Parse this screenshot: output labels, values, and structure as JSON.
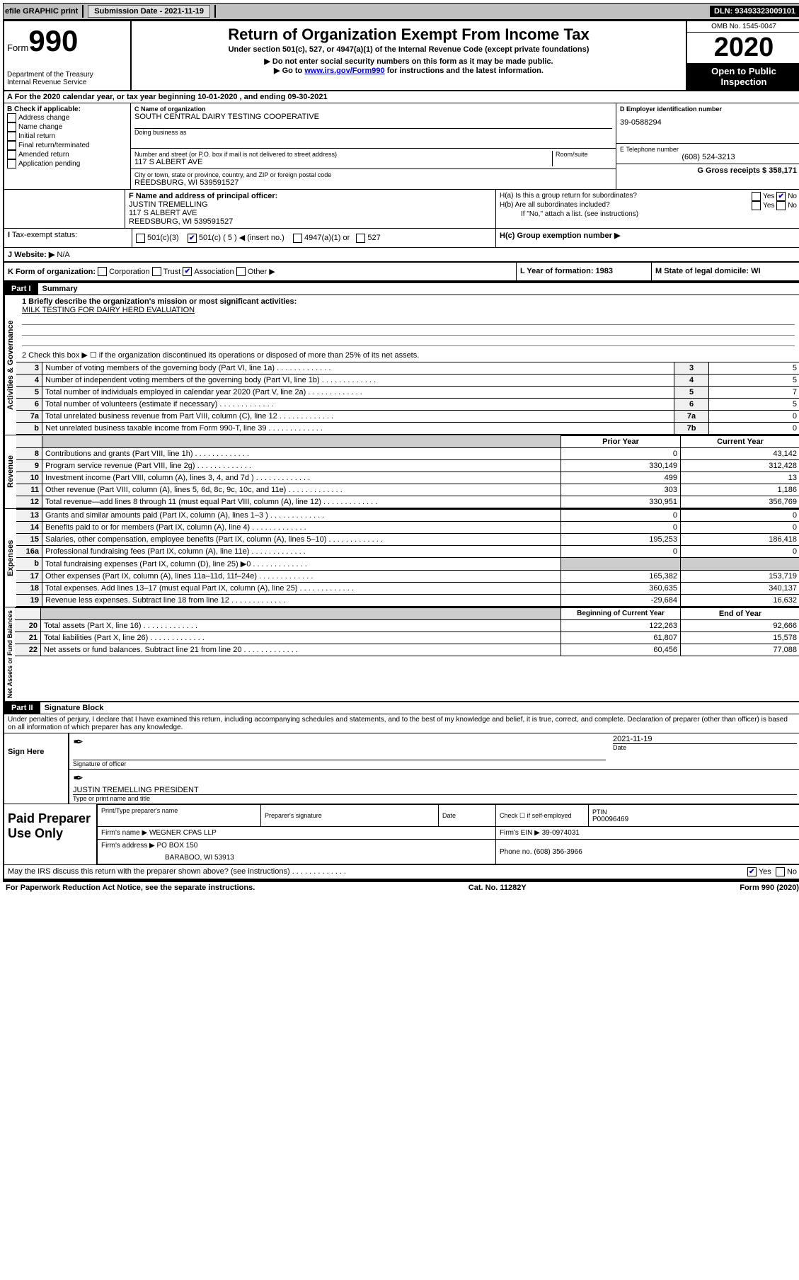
{
  "topbar": {
    "efile_label": "efile GRAPHIC print",
    "submission_label": "Submission Date - 2021-11-19",
    "dln": "DLN: 93493323009101"
  },
  "header": {
    "form_label": "Form",
    "form_number": "990",
    "dept": "Department of the Treasury",
    "irs": "Internal Revenue Service",
    "title": "Return of Organization Exempt From Income Tax",
    "subtitle": "Under section 501(c), 527, or 4947(a)(1) of the Internal Revenue Code (except private foundations)",
    "note1": "▶ Do not enter social security numbers on this form as it may be made public.",
    "note2_a": "▶ Go to ",
    "note2_link": "www.irs.gov/Form990",
    "note2_b": " for instructions and the latest information.",
    "omb": "OMB No. 1545-0047",
    "year": "2020",
    "inspect1": "Open to Public",
    "inspect2": "Inspection"
  },
  "section_a": "A For the 2020 calendar year, or tax year beginning 10-01-2020    , and ending 09-30-2021",
  "col_b": {
    "header": "B Check if applicable:",
    "items": [
      "Address change",
      "Name change",
      "Initial return",
      "Final return/terminated",
      "Amended return",
      "Application pending"
    ]
  },
  "col_c": {
    "name_lbl": "C Name of organization",
    "name": "SOUTH CENTRAL DAIRY TESTING COOPERATIVE",
    "dba_lbl": "Doing business as",
    "street_lbl": "Number and street (or P.O. box if mail is not delivered to street address)",
    "room_lbl": "Room/suite",
    "street": "117 S ALBERT AVE",
    "city_lbl": "City or town, state or province, country, and ZIP or foreign postal code",
    "city": "REEDSBURG, WI  539591527"
  },
  "col_d": {
    "ein_lbl": "D Employer identification number",
    "ein": "39-0588294",
    "tel_lbl": "E Telephone number",
    "tel": "(608) 524-3213",
    "gross_lbl": "G Gross receipts $ 358,171"
  },
  "officer": {
    "lbl": "F  Name and address of principal officer:",
    "name": "JUSTIN TREMELLING",
    "addr1": "117 S ALBERT AVE",
    "addr2": "REEDSBURG, WI  539591527"
  },
  "h_section": {
    "ha": "H(a)  Is this a group return for subordinates?",
    "hb": "H(b)  Are all subordinates included?",
    "hb_note": "If \"No,\" attach a list. (see instructions)",
    "hc": "H(c)  Group exemption number ▶",
    "yes": "Yes",
    "no": "No"
  },
  "tax_status": {
    "lbl": "Tax-exempt status:",
    "c3": "501(c)(3)",
    "c5": "501(c) ( 5 ) ◀ (insert no.)",
    "a1": "4947(a)(1) or",
    "527": "527"
  },
  "website": {
    "lbl": "J  Website: ▶",
    "val": "N/A"
  },
  "k_row": {
    "lbl": "K Form of organization:",
    "corp": "Corporation",
    "trust": "Trust",
    "assoc": "Association",
    "other": "Other ▶"
  },
  "l_row": {
    "lbl": "L Year of formation: 1983"
  },
  "m_row": {
    "lbl": "M State of legal domicile: WI"
  },
  "part1": {
    "hdr": "Part I",
    "title": "Summary"
  },
  "summary": {
    "line1_lbl": "1  Briefly describe the organization's mission or most significant activities:",
    "line1_val": "MILK TESTING FOR DAIRY HERD EVALUATION",
    "line2": "2   Check this box ▶ ☐  if the organization discontinued its operations or disposed of more than 25% of its net assets.",
    "rows_gov": [
      {
        "n": "3",
        "desc": "Number of voting members of the governing body (Part VI, line 1a)",
        "box": "3",
        "val": "5"
      },
      {
        "n": "4",
        "desc": "Number of independent voting members of the governing body (Part VI, line 1b)",
        "box": "4",
        "val": "5"
      },
      {
        "n": "5",
        "desc": "Total number of individuals employed in calendar year 2020 (Part V, line 2a)",
        "box": "5",
        "val": "7"
      },
      {
        "n": "6",
        "desc": "Total number of volunteers (estimate if necessary)",
        "box": "6",
        "val": "5"
      },
      {
        "n": "7a",
        "desc": "Total unrelated business revenue from Part VIII, column (C), line 12",
        "box": "7a",
        "val": "0"
      },
      {
        "n": "b",
        "desc": "Net unrelated business taxable income from Form 990-T, line 39",
        "box": "7b",
        "val": "0"
      }
    ],
    "col_hdr_prior": "Prior Year",
    "col_hdr_current": "Current Year",
    "rows_rev": [
      {
        "n": "8",
        "desc": "Contributions and grants (Part VIII, line 1h)",
        "p": "0",
        "c": "43,142"
      },
      {
        "n": "9",
        "desc": "Program service revenue (Part VIII, line 2g)",
        "p": "330,149",
        "c": "312,428"
      },
      {
        "n": "10",
        "desc": "Investment income (Part VIII, column (A), lines 3, 4, and 7d )",
        "p": "499",
        "c": "13"
      },
      {
        "n": "11",
        "desc": "Other revenue (Part VIII, column (A), lines 5, 6d, 8c, 9c, 10c, and 11e)",
        "p": "303",
        "c": "1,186"
      },
      {
        "n": "12",
        "desc": "Total revenue—add lines 8 through 11 (must equal Part VIII, column (A), line 12)",
        "p": "330,951",
        "c": "356,769"
      }
    ],
    "rows_exp": [
      {
        "n": "13",
        "desc": "Grants and similar amounts paid (Part IX, column (A), lines 1–3 )",
        "p": "0",
        "c": "0"
      },
      {
        "n": "14",
        "desc": "Benefits paid to or for members (Part IX, column (A), line 4)",
        "p": "0",
        "c": "0"
      },
      {
        "n": "15",
        "desc": "Salaries, other compensation, employee benefits (Part IX, column (A), lines 5–10)",
        "p": "195,253",
        "c": "186,418"
      },
      {
        "n": "16a",
        "desc": "Professional fundraising fees (Part IX, column (A), line 11e)",
        "p": "0",
        "c": "0"
      },
      {
        "n": "b",
        "desc": "Total fundraising expenses (Part IX, column (D), line 25) ▶0",
        "p": "grey",
        "c": "grey"
      },
      {
        "n": "17",
        "desc": "Other expenses (Part IX, column (A), lines 11a–11d, 11f–24e)",
        "p": "165,382",
        "c": "153,719"
      },
      {
        "n": "18",
        "desc": "Total expenses. Add lines 13–17 (must equal Part IX, column (A), line 25)",
        "p": "360,635",
        "c": "340,137"
      },
      {
        "n": "19",
        "desc": "Revenue less expenses. Subtract line 18 from line 12",
        "p": "-29,684",
        "c": "16,632"
      }
    ],
    "col_hdr_begin": "Beginning of Current Year",
    "col_hdr_end": "End of Year",
    "rows_net": [
      {
        "n": "20",
        "desc": "Total assets (Part X, line 16)",
        "p": "122,263",
        "c": "92,666"
      },
      {
        "n": "21",
        "desc": "Total liabilities (Part X, line 26)",
        "p": "61,807",
        "c": "15,578"
      },
      {
        "n": "22",
        "desc": "Net assets or fund balances. Subtract line 21 from line 20",
        "p": "60,456",
        "c": "77,088"
      }
    ]
  },
  "vlabels": {
    "gov": "Activities & Governance",
    "rev": "Revenue",
    "exp": "Expenses",
    "net": "Net Assets or Fund Balances"
  },
  "part2": {
    "hdr": "Part II",
    "title": "Signature Block",
    "jurat": "Under penalties of perjury, I declare that I have examined this return, including accompanying schedules and statements, and to the best of my knowledge and belief, it is true, correct, and complete. Declaration of preparer (other than officer) is based on all information of which preparer has any knowledge."
  },
  "sign": {
    "sign_here": "Sign Here",
    "sig_officer": "Signature of officer",
    "date": "Date",
    "sig_date": "2021-11-19",
    "name": "JUSTIN TREMELLING  PRESIDENT",
    "name_lbl": "Type or print name and title"
  },
  "preparer": {
    "lbl": "Paid Preparer Use Only",
    "print_name_lbl": "Print/Type preparer's name",
    "sig_lbl": "Preparer's signature",
    "date_lbl": "Date",
    "check_lbl": "Check ☐ if self-employed",
    "ptin_lbl": "PTIN",
    "ptin": "P00096469",
    "firm_name_lbl": "Firm's name    ▶",
    "firm_name": "WEGNER CPAS LLP",
    "firm_ein_lbl": "Firm's EIN ▶",
    "firm_ein": "39-0974031",
    "firm_addr_lbl": "Firm's address ▶",
    "firm_addr1": "PO BOX 150",
    "firm_addr2": "BARABOO, WI  53913",
    "phone_lbl": "Phone no.",
    "phone": "(608) 356-3966"
  },
  "discuss": {
    "q": "May the IRS discuss this return with the preparer shown above? (see instructions)",
    "yes": "Yes",
    "no": "No"
  },
  "footer": {
    "left": "For Paperwork Reduction Act Notice, see the separate instructions.",
    "mid": "Cat. No. 11282Y",
    "right": "Form 990 (2020)"
  },
  "colors": {
    "link": "#0000cc",
    "black": "#000000",
    "grey_bg": "#cccccc"
  }
}
